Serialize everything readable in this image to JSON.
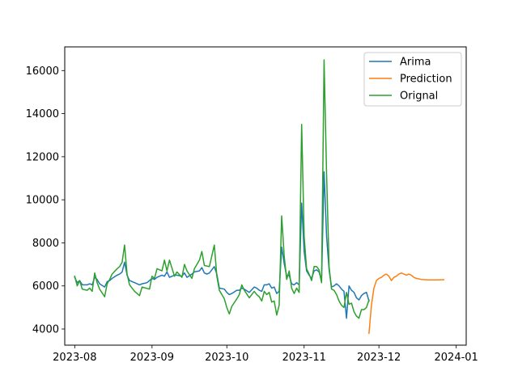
{
  "chart_data": {
    "type": "line",
    "title": "",
    "xlabel": "",
    "ylabel": "",
    "xlim": [
      "2023-07-28",
      "2024-01-05"
    ],
    "ylim": [
      3250,
      17100
    ],
    "x_ticks": [
      "2023-08",
      "2023-09",
      "2023-10",
      "2023-11",
      "2023-12",
      "2024-01"
    ],
    "y_ticks": [
      4000,
      6000,
      8000,
      10000,
      12000,
      14000,
      16000
    ],
    "legend": {
      "placement": "top-right",
      "entries": [
        "Arima",
        "Prediction",
        "Orignal"
      ]
    },
    "grid": false,
    "series": [
      {
        "name": "Arima",
        "color": "#1f77b4",
        "points": [
          [
            "2023-08-01",
            6400
          ],
          [
            "2023-08-02",
            6150
          ],
          [
            "2023-08-03",
            6250
          ],
          [
            "2023-08-04",
            6050
          ],
          [
            "2023-08-06",
            6050
          ],
          [
            "2023-08-07",
            6100
          ],
          [
            "2023-08-08",
            6050
          ],
          [
            "2023-08-09",
            6400
          ],
          [
            "2023-08-10",
            6300
          ],
          [
            "2023-08-11",
            6100
          ],
          [
            "2023-08-13",
            5950
          ],
          [
            "2023-08-14",
            6200
          ],
          [
            "2023-08-15",
            6250
          ],
          [
            "2023-08-16",
            6350
          ],
          [
            "2023-08-18",
            6500
          ],
          [
            "2023-08-19",
            6550
          ],
          [
            "2023-08-20",
            6650
          ],
          [
            "2023-08-21",
            7100
          ],
          [
            "2023-08-22",
            6500
          ],
          [
            "2023-08-23",
            6250
          ],
          [
            "2023-08-25",
            6150
          ],
          [
            "2023-08-27",
            6050
          ],
          [
            "2023-08-28",
            6100
          ],
          [
            "2023-08-30",
            6150
          ],
          [
            "2023-09-01",
            6350
          ],
          [
            "2023-09-02",
            6300
          ],
          [
            "2023-09-03",
            6400
          ],
          [
            "2023-09-05",
            6500
          ],
          [
            "2023-09-06",
            6450
          ],
          [
            "2023-09-07",
            6650
          ],
          [
            "2023-09-08",
            6400
          ],
          [
            "2023-09-10",
            6500
          ],
          [
            "2023-09-11",
            6500
          ],
          [
            "2023-09-13",
            6450
          ],
          [
            "2023-09-14",
            6600
          ],
          [
            "2023-09-15",
            6400
          ],
          [
            "2023-09-17",
            6550
          ],
          [
            "2023-09-18",
            6650
          ],
          [
            "2023-09-20",
            6700
          ],
          [
            "2023-09-21",
            6850
          ],
          [
            "2023-09-22",
            6600
          ],
          [
            "2023-09-23",
            6550
          ],
          [
            "2023-09-24",
            6600
          ],
          [
            "2023-09-26",
            6900
          ],
          [
            "2023-09-27",
            6550
          ],
          [
            "2023-09-28",
            5900
          ],
          [
            "2023-09-30",
            5850
          ],
          [
            "2023-10-01",
            5700
          ],
          [
            "2023-10-02",
            5600
          ],
          [
            "2023-10-03",
            5650
          ],
          [
            "2023-10-05",
            5800
          ],
          [
            "2023-10-06",
            5800
          ],
          [
            "2023-10-07",
            5900
          ],
          [
            "2023-10-08",
            5850
          ],
          [
            "2023-10-10",
            5700
          ],
          [
            "2023-10-12",
            5950
          ],
          [
            "2023-10-13",
            5900
          ],
          [
            "2023-10-14",
            5800
          ],
          [
            "2023-10-15",
            5750
          ],
          [
            "2023-10-16",
            6050
          ],
          [
            "2023-10-17",
            6050
          ],
          [
            "2023-10-18",
            6100
          ],
          [
            "2023-10-19",
            5900
          ],
          [
            "2023-10-20",
            5950
          ],
          [
            "2023-10-21",
            5650
          ],
          [
            "2023-10-22",
            5750
          ],
          [
            "2023-10-23",
            7800
          ],
          [
            "2023-10-24",
            7050
          ],
          [
            "2023-10-25",
            6450
          ],
          [
            "2023-10-26",
            6500
          ],
          [
            "2023-10-27",
            6100
          ],
          [
            "2023-10-28",
            6050
          ],
          [
            "2023-10-29",
            6150
          ],
          [
            "2023-10-30",
            6050
          ],
          [
            "2023-10-31",
            9850
          ],
          [
            "2023-11-01",
            7600
          ],
          [
            "2023-11-02",
            6700
          ],
          [
            "2023-11-03",
            6500
          ],
          [
            "2023-11-04",
            6350
          ],
          [
            "2023-11-05",
            6700
          ],
          [
            "2023-11-06",
            6750
          ],
          [
            "2023-11-07",
            6650
          ],
          [
            "2023-11-08",
            6250
          ],
          [
            "2023-11-09",
            11300
          ],
          [
            "2023-11-10",
            8300
          ],
          [
            "2023-11-11",
            6750
          ],
          [
            "2023-11-12",
            5950
          ],
          [
            "2023-11-13",
            6000
          ],
          [
            "2023-11-14",
            6100
          ],
          [
            "2023-11-15",
            6000
          ],
          [
            "2023-11-16",
            5850
          ],
          [
            "2023-11-17",
            5750
          ],
          [
            "2023-11-18",
            4500
          ],
          [
            "2023-11-19",
            6000
          ],
          [
            "2023-11-20",
            5800
          ],
          [
            "2023-11-21",
            5700
          ],
          [
            "2023-11-22",
            5450
          ],
          [
            "2023-11-23",
            5350
          ],
          [
            "2023-11-24",
            5550
          ],
          [
            "2023-11-25",
            5650
          ],
          [
            "2023-11-26",
            5700
          ],
          [
            "2023-11-27",
            5300
          ]
        ]
      },
      {
        "name": "Prediction",
        "color": "#ff7f0e",
        "points": [
          [
            "2023-11-27",
            3800
          ],
          [
            "2023-11-28",
            5100
          ],
          [
            "2023-11-29",
            5900
          ],
          [
            "2023-11-30",
            6250
          ],
          [
            "2023-12-01",
            6350
          ],
          [
            "2023-12-02",
            6400
          ],
          [
            "2023-12-03",
            6500
          ],
          [
            "2023-12-04",
            6550
          ],
          [
            "2023-12-05",
            6450
          ],
          [
            "2023-12-06",
            6250
          ],
          [
            "2023-12-07",
            6400
          ],
          [
            "2023-12-08",
            6450
          ],
          [
            "2023-12-09",
            6550
          ],
          [
            "2023-12-10",
            6600
          ],
          [
            "2023-12-11",
            6550
          ],
          [
            "2023-12-12",
            6500
          ],
          [
            "2023-12-13",
            6550
          ],
          [
            "2023-12-14",
            6500
          ],
          [
            "2023-12-15",
            6400
          ],
          [
            "2023-12-16",
            6350
          ],
          [
            "2023-12-18",
            6300
          ],
          [
            "2023-12-21",
            6280
          ],
          [
            "2023-12-24",
            6280
          ],
          [
            "2023-12-27",
            6290
          ]
        ]
      },
      {
        "name": "Orignal",
        "color": "#2ca02c",
        "points": [
          [
            "2023-08-01",
            6450
          ],
          [
            "2023-08-02",
            6000
          ],
          [
            "2023-08-03",
            6250
          ],
          [
            "2023-08-04",
            5850
          ],
          [
            "2023-08-06",
            5800
          ],
          [
            "2023-08-07",
            5900
          ],
          [
            "2023-08-08",
            5750
          ],
          [
            "2023-08-09",
            6600
          ],
          [
            "2023-08-10",
            6150
          ],
          [
            "2023-08-11",
            5850
          ],
          [
            "2023-08-13",
            5500
          ],
          [
            "2023-08-14",
            6100
          ],
          [
            "2023-08-15",
            6300
          ],
          [
            "2023-08-16",
            6550
          ],
          [
            "2023-08-18",
            6800
          ],
          [
            "2023-08-19",
            6900
          ],
          [
            "2023-08-20",
            7100
          ],
          [
            "2023-08-21",
            7900
          ],
          [
            "2023-08-22",
            6550
          ],
          [
            "2023-08-23",
            6050
          ],
          [
            "2023-08-25",
            5750
          ],
          [
            "2023-08-27",
            5550
          ],
          [
            "2023-08-28",
            5950
          ],
          [
            "2023-08-31",
            5850
          ],
          [
            "2023-09-01",
            6450
          ],
          [
            "2023-09-02",
            6350
          ],
          [
            "2023-09-03",
            6800
          ],
          [
            "2023-09-05",
            6700
          ],
          [
            "2023-09-06",
            7200
          ],
          [
            "2023-09-07",
            6700
          ],
          [
            "2023-09-08",
            7200
          ],
          [
            "2023-09-10",
            6450
          ],
          [
            "2023-09-11",
            6650
          ],
          [
            "2023-09-13",
            6400
          ],
          [
            "2023-09-14",
            7000
          ],
          [
            "2023-09-15",
            6700
          ],
          [
            "2023-09-17",
            6350
          ],
          [
            "2023-09-18",
            6800
          ],
          [
            "2023-09-20",
            7200
          ],
          [
            "2023-09-21",
            7600
          ],
          [
            "2023-09-22",
            6950
          ],
          [
            "2023-09-24",
            6900
          ],
          [
            "2023-09-26",
            7900
          ],
          [
            "2023-09-27",
            6450
          ],
          [
            "2023-09-28",
            5800
          ],
          [
            "2023-09-30",
            5400
          ],
          [
            "2023-10-01",
            5000
          ],
          [
            "2023-10-02",
            4700
          ],
          [
            "2023-10-03",
            5050
          ],
          [
            "2023-10-05",
            5400
          ],
          [
            "2023-10-06",
            5600
          ],
          [
            "2023-10-07",
            6050
          ],
          [
            "2023-10-08",
            5800
          ],
          [
            "2023-10-10",
            5450
          ],
          [
            "2023-10-12",
            5750
          ],
          [
            "2023-10-13",
            5600
          ],
          [
            "2023-10-14",
            5500
          ],
          [
            "2023-10-15",
            5300
          ],
          [
            "2023-10-16",
            5750
          ],
          [
            "2023-10-17",
            5600
          ],
          [
            "2023-10-18",
            5700
          ],
          [
            "2023-10-19",
            5250
          ],
          [
            "2023-10-20",
            5300
          ],
          [
            "2023-10-21",
            4650
          ],
          [
            "2023-10-22",
            5100
          ],
          [
            "2023-10-23",
            9250
          ],
          [
            "2023-10-24",
            7400
          ],
          [
            "2023-10-25",
            6300
          ],
          [
            "2023-10-26",
            6700
          ],
          [
            "2023-10-27",
            5900
          ],
          [
            "2023-10-28",
            5650
          ],
          [
            "2023-10-29",
            5900
          ],
          [
            "2023-10-30",
            5700
          ],
          [
            "2023-10-31",
            13500
          ],
          [
            "2023-11-01",
            8300
          ],
          [
            "2023-11-02",
            6800
          ],
          [
            "2023-11-03",
            6550
          ],
          [
            "2023-11-04",
            6250
          ],
          [
            "2023-11-05",
            6900
          ],
          [
            "2023-11-06",
            6900
          ],
          [
            "2023-11-07",
            6750
          ],
          [
            "2023-11-08",
            6150
          ],
          [
            "2023-11-09",
            16500
          ],
          [
            "2023-11-10",
            11200
          ],
          [
            "2023-11-11",
            6900
          ],
          [
            "2023-11-12",
            5850
          ],
          [
            "2023-11-13",
            5800
          ],
          [
            "2023-11-14",
            5600
          ],
          [
            "2023-11-15",
            5300
          ],
          [
            "2023-11-16",
            5100
          ],
          [
            "2023-11-17",
            5000
          ],
          [
            "2023-11-18",
            5700
          ],
          [
            "2023-11-19",
            5150
          ],
          [
            "2023-11-20",
            5200
          ],
          [
            "2023-11-21",
            4800
          ],
          [
            "2023-11-22",
            4600
          ],
          [
            "2023-11-23",
            4500
          ],
          [
            "2023-11-24",
            4900
          ],
          [
            "2023-11-25",
            4900
          ],
          [
            "2023-11-26",
            5000
          ],
          [
            "2023-11-27",
            5350
          ]
        ]
      }
    ]
  }
}
